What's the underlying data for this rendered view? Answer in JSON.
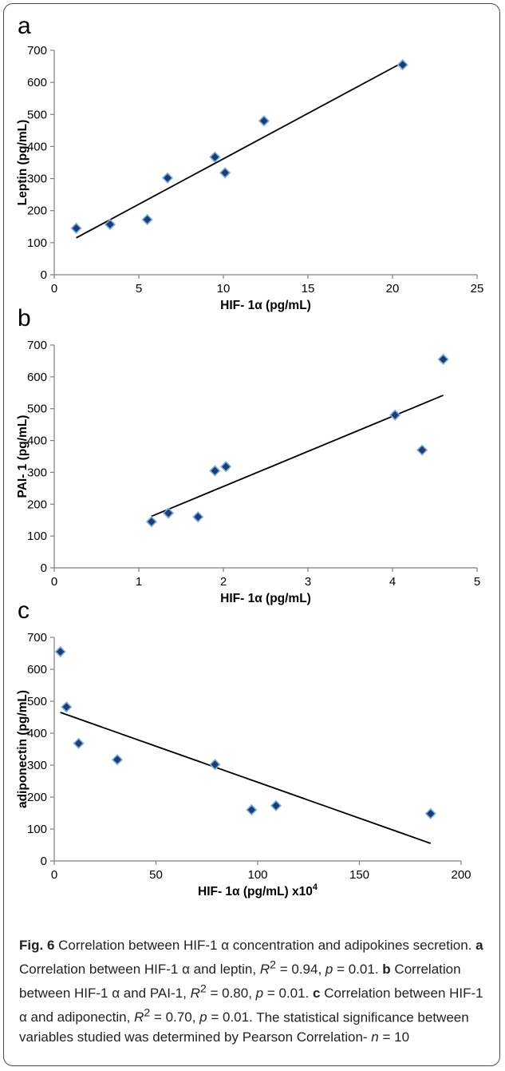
{
  "chart_data": [
    {
      "type": "scatter",
      "panel": "a",
      "xlabel": "HIF- 1α (pg/mL)",
      "ylabel": "Leptin (pg/mL)",
      "xlim": [
        0,
        25
      ],
      "ylim": [
        0,
        700
      ],
      "xticks": [
        0,
        5,
        10,
        15,
        20,
        25
      ],
      "yticks": [
        0,
        100,
        200,
        300,
        400,
        500,
        600,
        700
      ],
      "grid": false,
      "points": [
        {
          "x": 1.3,
          "y": 145
        },
        {
          "x": 3.3,
          "y": 157
        },
        {
          "x": 5.5,
          "y": 172
        },
        {
          "x": 6.7,
          "y": 302
        },
        {
          "x": 9.5,
          "y": 367
        },
        {
          "x": 10.1,
          "y": 318
        },
        {
          "x": 12.4,
          "y": 480
        },
        {
          "x": 20.6,
          "y": 655
        }
      ],
      "trendline": [
        {
          "x": 1.3,
          "y": 115
        },
        {
          "x": 20.6,
          "y": 662
        }
      ]
    },
    {
      "type": "scatter",
      "panel": "b",
      "xlabel": "HIF- 1α (pg/mL)",
      "ylabel": "PAI- 1 (pg/mL)",
      "xlim": [
        0,
        5
      ],
      "ylim": [
        0,
        700
      ],
      "xticks": [
        0,
        1,
        2,
        3,
        4,
        5
      ],
      "yticks": [
        0,
        100,
        200,
        300,
        400,
        500,
        600,
        700
      ],
      "grid": false,
      "points": [
        {
          "x": 1.15,
          "y": 145
        },
        {
          "x": 1.35,
          "y": 172
        },
        {
          "x": 1.7,
          "y": 160
        },
        {
          "x": 1.9,
          "y": 305
        },
        {
          "x": 2.03,
          "y": 318
        },
        {
          "x": 4.03,
          "y": 480
        },
        {
          "x": 4.35,
          "y": 370
        },
        {
          "x": 4.6,
          "y": 655
        }
      ],
      "trendline": [
        {
          "x": 1.15,
          "y": 162
        },
        {
          "x": 4.6,
          "y": 542
        }
      ]
    },
    {
      "type": "scatter",
      "panel": "c",
      "xlabel": "HIF- 1α (pg/mL) x10",
      "xlabel_sup": "4",
      "ylabel": "adiponectin (pg/mL)",
      "xlim": [
        0,
        200
      ],
      "ylim": [
        0,
        700
      ],
      "xticks": [
        0,
        50,
        100,
        150,
        200
      ],
      "yticks": [
        0,
        100,
        200,
        300,
        400,
        500,
        600,
        700
      ],
      "grid": false,
      "points": [
        {
          "x": 3,
          "y": 655
        },
        {
          "x": 6,
          "y": 482
        },
        {
          "x": 12,
          "y": 368
        },
        {
          "x": 31,
          "y": 317
        },
        {
          "x": 79,
          "y": 302
        },
        {
          "x": 97,
          "y": 160
        },
        {
          "x": 109,
          "y": 173
        },
        {
          "x": 185,
          "y": 148
        }
      ],
      "trendline": [
        {
          "x": 3,
          "y": 465
        },
        {
          "x": 185,
          "y": 55
        }
      ]
    }
  ],
  "caption": {
    "fig_label": "Fig. 6",
    "title": "Correlation between HIF-1 α concentration and adipokines secretion.",
    "panels": [
      {
        "letter": "a",
        "text": "Correlation between HIF-1 α and leptin,",
        "r2": "0.94",
        "p": "0.01"
      },
      {
        "letter": "b",
        "text": "Correlation between HIF-1 α and PAI-1,",
        "r2": "0.80",
        "p": "0.01"
      },
      {
        "letter": "c",
        "text": "Correlation between HIF-1 α and adiponectin,",
        "r2": "0.70",
        "p": "0.01"
      }
    ],
    "r2_symbol": "R",
    "r2_exp": "2",
    "p_symbol": "p",
    "tail": "The statistical significance between variables studied was determined by Pearson Correlation-",
    "n_symbol": "n",
    "n_value": "10"
  }
}
